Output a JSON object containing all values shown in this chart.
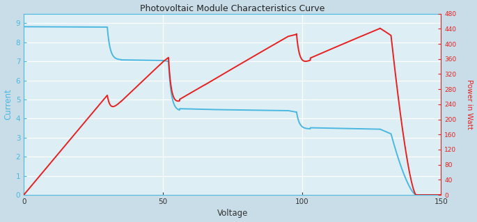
{
  "title": "Photovoltaic Module Characteristics Curve",
  "xlabel": "Voltage",
  "ylabel_left": "Current",
  "ylabel_right": "Power in Watt",
  "xlim": [
    0,
    150
  ],
  "ylim_left": [
    0,
    9.5
  ],
  "ylim_right": [
    0,
    480
  ],
  "bg_color": "#ddeef5",
  "fig_color": "#c8dde8",
  "line_color_iv": "#4ab8e0",
  "line_color_pv": "#e82020",
  "grid_color": "white",
  "left_tick_color": "#4ab8e0",
  "right_tick_color": "#e82020",
  "title_color": "#222222",
  "spine_color_left": "#4ab8e0",
  "spine_color_right": "#e82020",
  "xtick_major": 50,
  "ytick_left_major": 1,
  "ytick_right_major": 40,
  "linewidth": 1.4,
  "figsize": [
    6.85,
    3.19
  ],
  "dpi": 100
}
